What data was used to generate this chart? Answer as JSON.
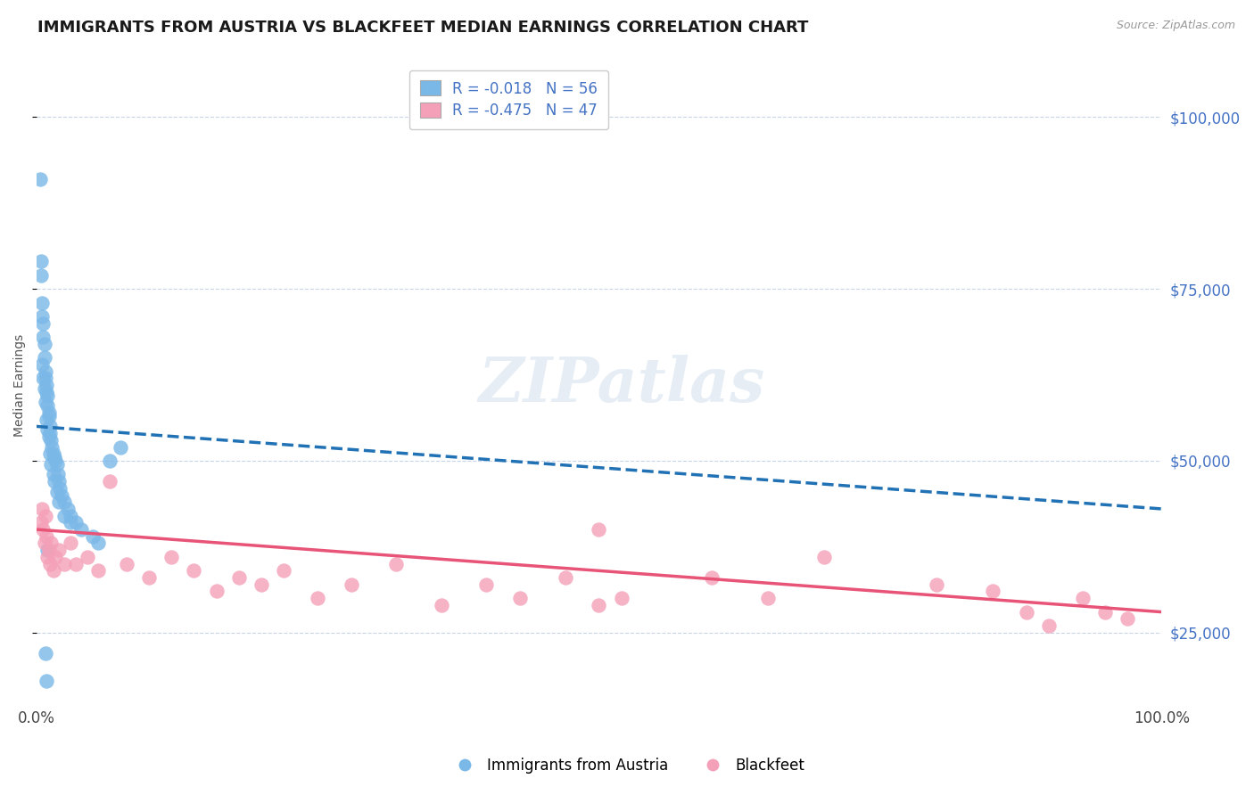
{
  "title": "IMMIGRANTS FROM AUSTRIA VS BLACKFEET MEDIAN EARNINGS CORRELATION CHART",
  "source_text": "Source: ZipAtlas.com",
  "ylabel": "Median Earnings",
  "xlim": [
    0.0,
    100.0
  ],
  "ylim": [
    15000,
    107000
  ],
  "yticks": [
    25000,
    50000,
    75000,
    100000
  ],
  "ytick_labels": [
    "$25,000",
    "$50,000",
    "$75,000",
    "$100,000"
  ],
  "xticks": [
    0.0,
    100.0
  ],
  "xtick_labels": [
    "0.0%",
    "100.0%"
  ],
  "blue_color": "#7ab8e8",
  "pink_color": "#f4a0b8",
  "blue_line_color": "#2171b5",
  "pink_line_color": "#e85478",
  "axis_label_color": "#4472c4",
  "legend_blue_label": "R = -0.018   N = 56",
  "legend_pink_label": "R = -0.475   N = 47",
  "watermark": "ZIPatlas",
  "blue_scatter_x": [
    0.3,
    0.4,
    0.4,
    0.5,
    0.5,
    0.6,
    0.6,
    0.7,
    0.7,
    0.8,
    0.8,
    0.9,
    0.9,
    1.0,
    1.0,
    1.1,
    1.1,
    1.2,
    1.2,
    1.3,
    1.4,
    1.5,
    1.6,
    1.7,
    1.8,
    1.9,
    2.0,
    2.1,
    2.2,
    2.5,
    2.8,
    3.0,
    3.5,
    4.0,
    5.0,
    5.5,
    6.5,
    7.5,
    0.5,
    0.6,
    0.7,
    0.8,
    0.9,
    1.0,
    1.1,
    1.2,
    1.3,
    1.5,
    1.6,
    1.8,
    2.0,
    2.5,
    3.0,
    0.8,
    0.9,
    1.0
  ],
  "blue_scatter_y": [
    91000,
    79000,
    77000,
    73000,
    71000,
    70000,
    68000,
    67000,
    65000,
    63000,
    62000,
    61000,
    60000,
    59500,
    58000,
    57000,
    56500,
    55000,
    54000,
    53000,
    52000,
    51000,
    50500,
    50000,
    49500,
    48000,
    47000,
    46000,
    45000,
    44000,
    43000,
    42000,
    41000,
    40000,
    39000,
    38000,
    50000,
    52000,
    64000,
    62000,
    60500,
    58500,
    56000,
    54500,
    53500,
    51000,
    49500,
    48000,
    47000,
    45500,
    44000,
    42000,
    41000,
    22000,
    18000,
    37000
  ],
  "pink_scatter_x": [
    0.4,
    0.5,
    0.6,
    0.7,
    0.8,
    0.9,
    1.0,
    1.1,
    1.2,
    1.3,
    1.5,
    1.7,
    2.0,
    2.5,
    3.0,
    3.5,
    4.5,
    5.5,
    6.5,
    8.0,
    10.0,
    12.0,
    14.0,
    16.0,
    18.0,
    20.0,
    22.0,
    25.0,
    28.0,
    32.0,
    36.0,
    40.0,
    43.0,
    47.0,
    50.0,
    52.0,
    60.0,
    65.0,
    70.0,
    80.0,
    85.0,
    88.0,
    90.0,
    93.0,
    95.0,
    97.0,
    50.0
  ],
  "pink_scatter_y": [
    41000,
    43000,
    40000,
    38000,
    42000,
    39000,
    36000,
    37000,
    35000,
    38000,
    34000,
    36000,
    37000,
    35000,
    38000,
    35000,
    36000,
    34000,
    47000,
    35000,
    33000,
    36000,
    34000,
    31000,
    33000,
    32000,
    34000,
    30000,
    32000,
    35000,
    29000,
    32000,
    30000,
    33000,
    29000,
    30000,
    33000,
    30000,
    36000,
    32000,
    31000,
    28000,
    26000,
    30000,
    28000,
    27000,
    40000
  ],
  "blue_trend_x": [
    0.0,
    100.0
  ],
  "blue_trend_y": [
    55000,
    43000
  ],
  "pink_trend_x": [
    0.0,
    100.0
  ],
  "pink_trend_y": [
    40000,
    28000
  ],
  "background_color": "#ffffff",
  "grid_color": "#c8d4e8",
  "title_fontsize": 13,
  "axis_label_fontsize": 10
}
